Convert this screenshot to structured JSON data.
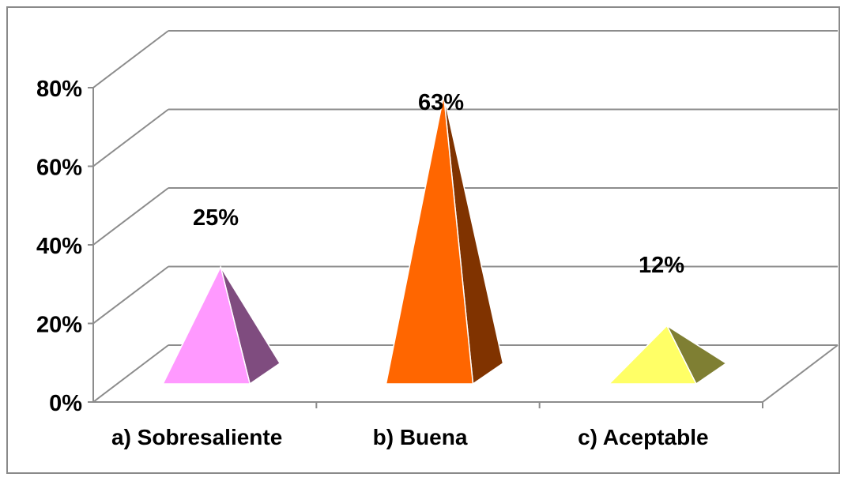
{
  "chart_data": {
    "type": "bar",
    "bar_shape": "pyramid-3d",
    "categories": [
      "a) Sobresaliente",
      "b) Buena",
      "c) Aceptable"
    ],
    "values": [
      25,
      63,
      12
    ],
    "data_labels": [
      "25%",
      "63%",
      "12%"
    ],
    "colors": [
      {
        "front": "#FF99FF",
        "side": "#7F4C7F"
      },
      {
        "front": "#FF6600",
        "side": "#803300"
      },
      {
        "front": "#FFFF66",
        "side": "#7F7F33"
      }
    ],
    "ylim": [
      0,
      80
    ],
    "yticks": [
      "0%",
      "20%",
      "40%",
      "60%",
      "80%"
    ],
    "grid": true,
    "legend": "none"
  }
}
